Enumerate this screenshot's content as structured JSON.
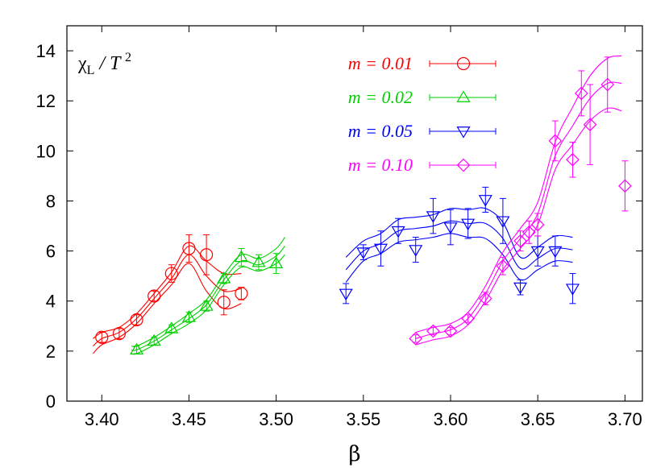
{
  "chart_data": {
    "type": "scatter",
    "title": "",
    "ylabel": "χL / T 2",
    "ylabel_parts": {
      "chi": "χ",
      "sub": "L",
      "mid": " / T ",
      "sup": "2"
    },
    "xlabel": "β",
    "xlim": [
      3.38,
      3.71
    ],
    "ylim": [
      0,
      15
    ],
    "xticks": [
      "3.40",
      "3.45",
      "3.50",
      "3.55",
      "3.60",
      "3.65",
      "3.70"
    ],
    "yticks": [
      "0",
      "2",
      "4",
      "6",
      "8",
      "10",
      "12",
      "14"
    ],
    "grid": false,
    "legend_position": "top-right",
    "series": [
      {
        "name": "m = 0.01",
        "color": "#ff0000",
        "marker": "circle",
        "points": [
          {
            "x": 3.4,
            "y": 2.55,
            "err": 0.2
          },
          {
            "x": 3.41,
            "y": 2.7,
            "err": 0.2
          },
          {
            "x": 3.42,
            "y": 3.25,
            "err": 0.2
          },
          {
            "x": 3.43,
            "y": 4.2,
            "err": 0.2
          },
          {
            "x": 3.44,
            "y": 5.1,
            "err": 0.35
          },
          {
            "x": 3.45,
            "y": 6.1,
            "err": 0.55
          },
          {
            "x": 3.46,
            "y": 5.85,
            "err": 0.8
          },
          {
            "x": 3.47,
            "y": 3.95,
            "err": 0.5
          },
          {
            "x": 3.48,
            "y": 4.3,
            "err": 0.25
          }
        ],
        "band": {
          "x": [
            3.395,
            3.4,
            3.41,
            3.42,
            3.43,
            3.44,
            3.45,
            3.46,
            3.47,
            3.48
          ],
          "center": [
            2.2,
            2.5,
            2.75,
            3.3,
            4.1,
            4.9,
            5.85,
            5.0,
            4.4,
            4.5
          ],
          "width": [
            0.3,
            0.25,
            0.2,
            0.2,
            0.2,
            0.25,
            0.35,
            0.6,
            0.7,
            0.6
          ]
        }
      },
      {
        "name": "m = 0.02",
        "color": "#00d000",
        "marker": "triangle-up",
        "points": [
          {
            "x": 3.42,
            "y": 2.05,
            "err": 0.15
          },
          {
            "x": 3.43,
            "y": 2.4,
            "err": 0.15
          },
          {
            "x": 3.44,
            "y": 2.9,
            "err": 0.15
          },
          {
            "x": 3.45,
            "y": 3.35,
            "err": 0.2
          },
          {
            "x": 3.46,
            "y": 3.8,
            "err": 0.2
          },
          {
            "x": 3.47,
            "y": 4.9,
            "err": 0.2
          },
          {
            "x": 3.48,
            "y": 5.75,
            "err": 0.35
          },
          {
            "x": 3.49,
            "y": 5.55,
            "err": 0.3
          },
          {
            "x": 3.5,
            "y": 5.5,
            "err": 0.4
          }
        ],
        "band": {
          "x": [
            3.417,
            3.42,
            3.43,
            3.44,
            3.45,
            3.46,
            3.47,
            3.48,
            3.49,
            3.5,
            3.505
          ],
          "center": [
            2.05,
            2.05,
            2.4,
            2.85,
            3.3,
            3.85,
            4.85,
            5.6,
            5.45,
            5.8,
            6.2
          ],
          "width": [
            0.15,
            0.15,
            0.15,
            0.15,
            0.2,
            0.2,
            0.2,
            0.25,
            0.25,
            0.3,
            0.35
          ]
        }
      },
      {
        "name": "m = 0.05",
        "color": "#0000ff",
        "marker": "triangle-down",
        "points": [
          {
            "x": 3.54,
            "y": 4.3,
            "err": 0.4
          },
          {
            "x": 3.55,
            "y": 5.95,
            "err": 0.3
          },
          {
            "x": 3.56,
            "y": 6.1,
            "err": 0.7
          },
          {
            "x": 3.57,
            "y": 6.8,
            "err": 0.5
          },
          {
            "x": 3.58,
            "y": 6.05,
            "err": 0.5
          },
          {
            "x": 3.59,
            "y": 7.4,
            "err": 0.7
          },
          {
            "x": 3.6,
            "y": 6.95,
            "err": 0.7
          },
          {
            "x": 3.61,
            "y": 7.1,
            "err": 0.6
          },
          {
            "x": 3.62,
            "y": 8.05,
            "err": 0.5
          },
          {
            "x": 3.63,
            "y": 7.2,
            "err": 0.9
          },
          {
            "x": 3.64,
            "y": 4.55,
            "err": 0.3
          },
          {
            "x": 3.65,
            "y": 6.0,
            "err": 0.6
          },
          {
            "x": 3.66,
            "y": 6.0,
            "err": 0.6
          },
          {
            "x": 3.67,
            "y": 4.5,
            "err": 0.6
          }
        ],
        "band": {
          "x": [
            3.54,
            3.55,
            3.56,
            3.57,
            3.58,
            3.59,
            3.6,
            3.61,
            3.62,
            3.63,
            3.64,
            3.65,
            3.66,
            3.67
          ],
          "center": [
            5.25,
            6.0,
            6.3,
            6.8,
            6.9,
            7.0,
            7.2,
            7.1,
            7.1,
            6.5,
            5.3,
            5.7,
            6.1,
            6.05
          ],
          "width": [
            0.5,
            0.4,
            0.4,
            0.45,
            0.45,
            0.45,
            0.5,
            0.55,
            0.6,
            0.65,
            0.45,
            0.45,
            0.5,
            0.5
          ]
        }
      },
      {
        "name": "m = 0.10",
        "color": "#ff00ff",
        "marker": "diamond",
        "points": [
          {
            "x": 3.58,
            "y": 2.5,
            "err": 0.15
          },
          {
            "x": 3.59,
            "y": 2.8,
            "err": 0.15
          },
          {
            "x": 3.6,
            "y": 2.8,
            "err": 0.15
          },
          {
            "x": 3.61,
            "y": 3.3,
            "err": 0.15
          },
          {
            "x": 3.62,
            "y": 4.1,
            "err": 0.25
          },
          {
            "x": 3.63,
            "y": 5.4,
            "err": 0.35
          },
          {
            "x": 3.64,
            "y": 6.4,
            "err": 0.4
          },
          {
            "x": 3.645,
            "y": 6.75,
            "err": 0.45
          },
          {
            "x": 3.65,
            "y": 7.05,
            "err": 0.45
          },
          {
            "x": 3.66,
            "y": 10.4,
            "err": 0.8
          },
          {
            "x": 3.67,
            "y": 9.65,
            "err": 0.7
          },
          {
            "x": 3.675,
            "y": 12.3,
            "err": 0.9
          },
          {
            "x": 3.68,
            "y": 11.05,
            "err": 1.6
          },
          {
            "x": 3.69,
            "y": 12.65,
            "err": 1.1
          },
          {
            "x": 3.7,
            "y": 8.6,
            "err": 1.0
          }
        ],
        "band": {
          "x": [
            3.58,
            3.59,
            3.6,
            3.61,
            3.62,
            3.63,
            3.64,
            3.65,
            3.66,
            3.67,
            3.68,
            3.69,
            3.698
          ],
          "center": [
            2.5,
            2.7,
            2.85,
            3.3,
            4.3,
            5.6,
            6.5,
            7.5,
            9.8,
            11.0,
            12.1,
            12.7,
            12.7
          ],
          "width": [
            0.25,
            0.25,
            0.25,
            0.25,
            0.3,
            0.35,
            0.4,
            0.45,
            0.55,
            0.75,
            0.9,
            1.0,
            1.1
          ]
        }
      }
    ]
  }
}
